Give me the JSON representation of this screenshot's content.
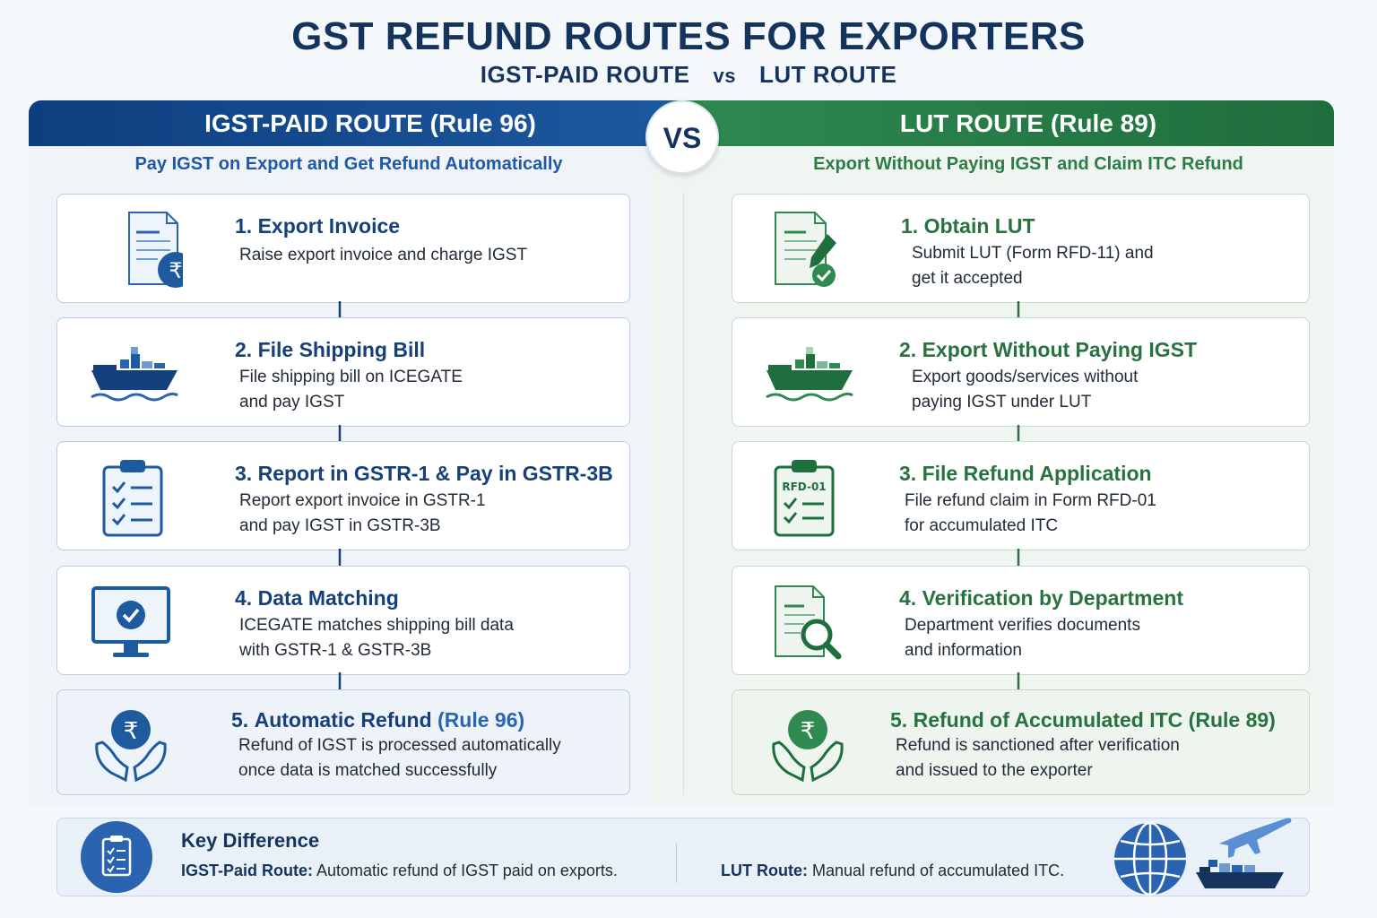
{
  "header": {
    "title": "GST REFUND ROUTES FOR EXPORTERS",
    "subtitle_left": "IGST-PAID ROUTE",
    "subtitle_vs": "vs",
    "subtitle_right": "LUT ROUTE"
  },
  "vs_badge": "VS",
  "left_panel": {
    "heading": "IGST-PAID ROUTE (Rule 96)",
    "tagline": "Pay IGST on Export and Get Refund Automatically",
    "color": "#16407a",
    "steps": [
      {
        "number": "1.",
        "title": "Export Invoice",
        "desc_1": "Raise export invoice and charge IGST",
        "desc_2": "",
        "icon": "invoice-rupee-icon"
      },
      {
        "number": "2.",
        "title": "File Shipping Bill",
        "desc_1": "File shipping bill on ICEGATE",
        "desc_2": "and pay IGST",
        "icon": "cargo-ship-icon"
      },
      {
        "number": "3.",
        "title": "Report in GSTR-1 & Pay in GSTR-3B",
        "desc_1": "Report export invoice in GSTR-1",
        "desc_2": "and pay IGST in GSTR-3B",
        "icon": "clipboard-checklist-icon"
      },
      {
        "number": "4.",
        "title": "Data Matching",
        "desc_1": "ICEGATE matches shipping bill data",
        "desc_2": "with GSTR-1 & GSTR-3B",
        "icon": "monitor-check-icon"
      },
      {
        "number": "5.",
        "title": "Automatic Refund",
        "title_rule": "(Rule 96)",
        "desc_1": "Refund of IGST is processed automatically",
        "desc_2": "once data is matched successfully",
        "icon": "hands-rupee-icon"
      }
    ]
  },
  "right_panel": {
    "heading": "LUT ROUTE (Rule 89)",
    "tagline": "Export Without Paying IGST and Claim ITC Refund",
    "color": "#27733f",
    "steps": [
      {
        "number": "1.",
        "title": "Obtain LUT",
        "desc_1": "Submit LUT (Form RFD-11) and",
        "desc_2": "get it accepted",
        "icon": "document-pen-check-icon"
      },
      {
        "number": "2.",
        "title": "Export Without Paying IGST",
        "desc_1": "Export goods/services without",
        "desc_2": "paying IGST under LUT",
        "icon": "cargo-ship-icon"
      },
      {
        "number": "3.",
        "title": "File Refund Application",
        "desc_1": "File refund claim in Form RFD-01",
        "desc_2": "for accumulated ITC",
        "icon": "clipboard-rfd-icon",
        "icon_label": "RFD-01"
      },
      {
        "number": "4.",
        "title": "Verification by Department",
        "desc_1": "Department verifies documents",
        "desc_2": "and information",
        "icon": "document-magnifier-icon"
      },
      {
        "number": "5.",
        "title": "Refund of Accumulated ITC (Rule 89)",
        "desc_1": "Refund is sanctioned after verification",
        "desc_2": "and issued to the exporter",
        "icon": "hands-rupee-icon"
      }
    ]
  },
  "key_difference": {
    "title": "Key Difference",
    "left_label": "IGST-Paid Route:",
    "left_text": " Automatic refund of IGST paid on exports.",
    "right_label": "LUT Route:",
    "right_text": " Manual refund of accumulated ITC."
  },
  "colors": {
    "navy": "#14345e",
    "blue_primary": "#1e5aa0",
    "green_primary": "#2f8a52"
  }
}
